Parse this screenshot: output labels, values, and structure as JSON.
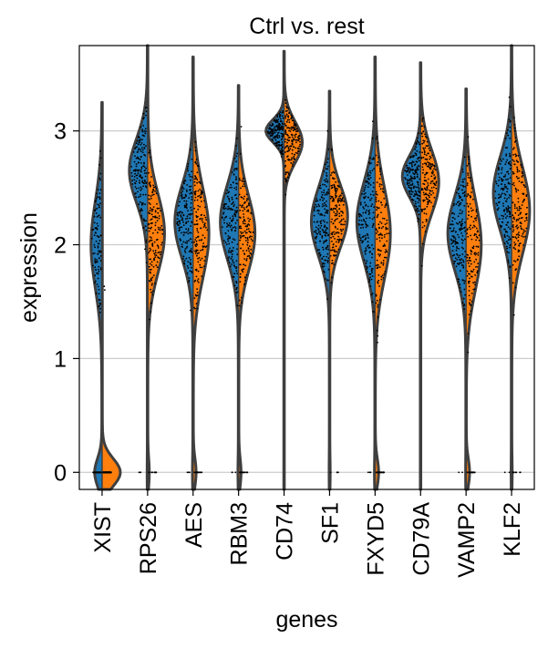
{
  "chart_data": {
    "type": "violin",
    "title": "Ctrl vs. rest",
    "xlabel": "genes",
    "ylabel": "expression",
    "categories": [
      "XIST",
      "RPS26",
      "AES",
      "RBM3",
      "CD74",
      "SF1",
      "FXYD5",
      "CD79A",
      "VAMP2",
      "KLF2"
    ],
    "yticks": [
      0,
      1,
      2,
      3
    ],
    "ylim": [
      -0.15,
      3.75
    ],
    "grid": true,
    "split": true,
    "groups": [
      "Ctrl",
      "rest"
    ],
    "colors": {
      "left": "#1f77b4",
      "right": "#ff7f0e",
      "outline": "#3f3f3f",
      "grid": "#cccccc"
    },
    "distributions": [
      {
        "name": "XIST",
        "max": 3.25,
        "left": {
          "median": 2.0,
          "sd": 0.38,
          "zero_frac": 0.4,
          "min_val": 1.4
        },
        "right": {
          "median": 0.0,
          "sd": 0.18,
          "zero_frac": 0.97,
          "min_val": 1.6
        }
      },
      {
        "name": "RPS26",
        "max": 3.75,
        "left": {
          "median": 2.65,
          "sd": 0.28,
          "zero_frac": 0.01,
          "min_val": 1.8
        },
        "right": {
          "median": 2.1,
          "sd": 0.35,
          "zero_frac": 0.08,
          "min_val": 1.2
        }
      },
      {
        "name": "AES",
        "max": 3.65,
        "left": {
          "median": 2.2,
          "sd": 0.32,
          "zero_frac": 0.02,
          "min_val": 1.4
        },
        "right": {
          "median": 2.1,
          "sd": 0.4,
          "zero_frac": 0.15,
          "min_val": 0.9
        }
      },
      {
        "name": "RBM3",
        "max": 3.4,
        "left": {
          "median": 2.2,
          "sd": 0.33,
          "zero_frac": 0.02,
          "min_val": 1.4
        },
        "right": {
          "median": 2.1,
          "sd": 0.33,
          "zero_frac": 0.12,
          "min_val": 1.1
        }
      },
      {
        "name": "CD74",
        "max": 3.7,
        "left": {
          "median": 3.0,
          "sd": 0.1,
          "zero_frac": 0.0,
          "min_val": 2.7
        },
        "right": {
          "median": 2.9,
          "sd": 0.18,
          "zero_frac": 0.0,
          "min_val": 2.4
        }
      },
      {
        "name": "SF1",
        "max": 3.35,
        "left": {
          "median": 2.2,
          "sd": 0.3,
          "zero_frac": 0.01,
          "min_val": 1.3
        },
        "right": {
          "median": 2.25,
          "sd": 0.27,
          "zero_frac": 0.02,
          "min_val": 1.6
        }
      },
      {
        "name": "FXYD5",
        "max": 3.65,
        "left": {
          "median": 2.2,
          "sd": 0.35,
          "zero_frac": 0.02,
          "min_val": 1.3
        },
        "right": {
          "median": 2.1,
          "sd": 0.4,
          "zero_frac": 0.18,
          "min_val": 0.9
        }
      },
      {
        "name": "CD79A",
        "max": 3.6,
        "left": {
          "median": 2.6,
          "sd": 0.18,
          "zero_frac": 0.0,
          "min_val": 2.1
        },
        "right": {
          "median": 2.55,
          "sd": 0.28,
          "zero_frac": 0.0,
          "min_val": 1.8
        }
      },
      {
        "name": "VAMP2",
        "max": 3.37,
        "left": {
          "median": 2.1,
          "sd": 0.33,
          "zero_frac": 0.01,
          "min_val": 1.3
        },
        "right": {
          "median": 2.0,
          "sd": 0.4,
          "zero_frac": 0.18,
          "min_val": 0.9
        }
      },
      {
        "name": "KLF2",
        "max": 3.75,
        "left": {
          "median": 2.45,
          "sd": 0.33,
          "zero_frac": 0.01,
          "min_val": 1.5
        },
        "right": {
          "median": 2.3,
          "sd": 0.38,
          "zero_frac": 0.02,
          "min_val": 1.2
        }
      }
    ]
  }
}
